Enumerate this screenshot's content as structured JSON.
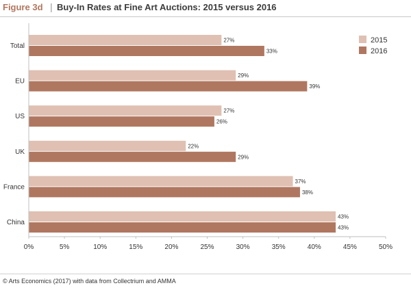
{
  "header": {
    "figure_label": "Figure 3d",
    "separator": "|",
    "title": "Buy-In Rates at Fine Art Auctions: 2015 versus 2016"
  },
  "footer": {
    "source": "© Arts Economics (2017) with data from Collectrium and AMMA"
  },
  "chart_data": {
    "type": "bar",
    "orientation": "horizontal",
    "title": "Buy-In Rates at Fine Art Auctions: 2015 versus 2016",
    "xlabel": "",
    "ylabel": "",
    "categories": [
      "Total",
      "EU",
      "US",
      "UK",
      "France",
      "China"
    ],
    "series": [
      {
        "name": "2015",
        "values": [
          27,
          29,
          27,
          22,
          37,
          43
        ],
        "color": "#dfc0b2"
      },
      {
        "name": "2016",
        "values": [
          33,
          39,
          26,
          29,
          38,
          43
        ],
        "color": "#b07760"
      }
    ],
    "data_labels": [
      [
        "27%",
        "29%",
        "27%",
        "22%",
        "37%",
        "43%"
      ],
      [
        "33%",
        "39%",
        "26%",
        "29%",
        "38%",
        "43%"
      ]
    ],
    "xticks": [
      "0%",
      "5%",
      "10%",
      "15%",
      "20%",
      "25%",
      "30%",
      "35%",
      "40%",
      "45%",
      "50%"
    ],
    "xlim": [
      0,
      50
    ],
    "grid": false,
    "legend_position": "top-right"
  }
}
